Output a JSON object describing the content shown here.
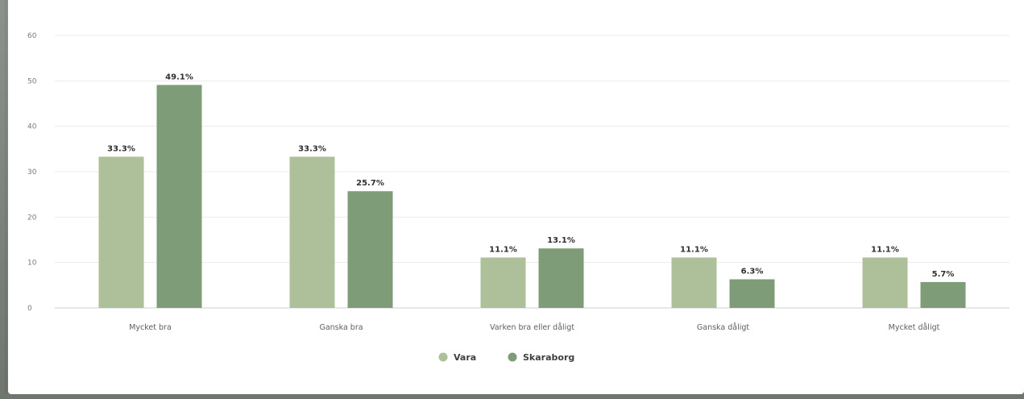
{
  "chart_data": {
    "type": "bar",
    "title": "",
    "xlabel": "",
    "ylabel": "",
    "categories": [
      "Mycket bra",
      "Ganska bra",
      "Varken bra eller dåligt",
      "Ganska dåligt",
      "Mycket dåligt"
    ],
    "series": [
      {
        "name": "Vara",
        "color": "#adc09a",
        "values": [
          33.3,
          33.3,
          11.1,
          11.1,
          11.1
        ],
        "labels": [
          "33.3%",
          "33.3%",
          "11.1%",
          "11.1%",
          "11.1%"
        ]
      },
      {
        "name": "Skaraborg",
        "color": "#7d9c77",
        "values": [
          49.1,
          25.7,
          13.1,
          6.3,
          5.7
        ],
        "labels": [
          "49.1%",
          "25.7%",
          "13.1%",
          "6.3%",
          "5.7%"
        ]
      }
    ],
    "y_ticks": [
      "0",
      "10",
      "20",
      "30",
      "40",
      "50",
      "60"
    ],
    "ylim": [
      0,
      60
    ],
    "grid": true,
    "legend_position": "bottom-center"
  }
}
